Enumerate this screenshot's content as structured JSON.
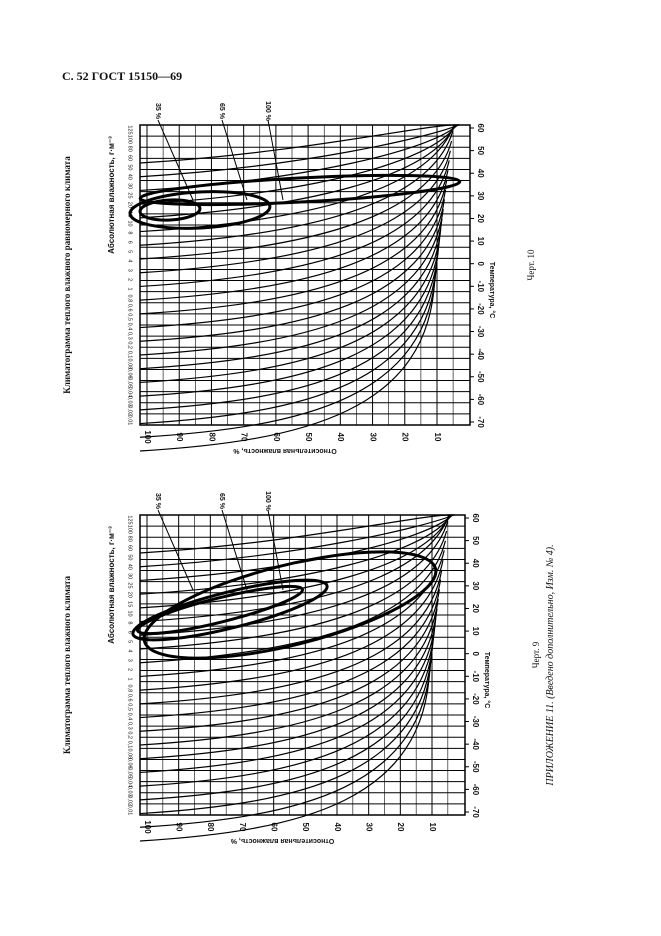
{
  "header": "С. 52 ГОСТ 15150—69",
  "figures": [
    {
      "title": "Климатограмма теплого влажного равномерного климата",
      "y_label": "Абсолютная влажность, г·м⁻³",
      "x_label": "Относительная влажность, %",
      "right_label": "Температура, °С",
      "caption": "Черт. 10",
      "curve_labels": [
        "35 %",
        "65 %",
        "100 %"
      ],
      "rh_ticks": [
        100,
        90,
        80,
        70,
        60,
        50,
        40,
        30,
        20,
        10
      ],
      "temp_ticks": [
        60,
        50,
        40,
        30,
        20,
        10,
        0,
        -10,
        -20,
        -30,
        -40,
        -50,
        -60,
        -70
      ],
      "ah_ticks": [
        "125",
        "100",
        "80",
        "60",
        "50",
        "40",
        "30",
        "25",
        "20",
        "15",
        "10",
        "8",
        "6",
        "5",
        "4",
        "3",
        "2",
        "1",
        "0,8",
        "0,6",
        "0,5",
        "0,4",
        "0,3",
        "0,2",
        "0,1",
        "0,08",
        "0,06",
        "0,05",
        "0,04",
        "0,03",
        "0,02",
        "0,01"
      ]
    },
    {
      "title": "Климатограмма теплого влажного климата",
      "y_label": "Абсолютная влажность, г·м⁻³",
      "x_label": "Относительная влажность, %",
      "right_label": "Температура, °С",
      "caption": "Черт. 9",
      "curve_labels": [
        "35 %",
        "65 %",
        "100 %"
      ],
      "rh_ticks": [
        100,
        90,
        80,
        70,
        60,
        50,
        40,
        30,
        20,
        10
      ],
      "temp_ticks": [
        60,
        50,
        40,
        30,
        20,
        10,
        0,
        -10,
        -20,
        -30,
        -40,
        -50,
        -60,
        -70
      ],
      "ah_ticks": [
        "125",
        "100",
        "80",
        "60",
        "50",
        "40",
        "30",
        "25",
        "20",
        "15",
        "10",
        "8",
        "6",
        "5",
        "4",
        "3",
        "2",
        "1",
        "0,8",
        "0,6",
        "0,5",
        "0,4",
        "0,3",
        "0,2",
        "0,1",
        "0,08",
        "0,06",
        "0,05",
        "0,04",
        "0,03",
        "0,02",
        "0,01"
      ]
    }
  ],
  "appendix": "ПРИЛОЖЕНИЕ 11. (Введено дополнительно, Изм. № 4)."
}
